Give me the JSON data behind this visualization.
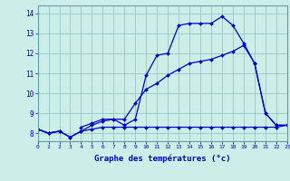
{
  "xlabel": "Graphe des températures (°c)",
  "hours": [
    0,
    1,
    2,
    3,
    4,
    5,
    6,
    7,
    8,
    9,
    10,
    11,
    12,
    13,
    14,
    15,
    16,
    17,
    18,
    19,
    20,
    21,
    22,
    23
  ],
  "line1": [
    8.2,
    8.0,
    8.1,
    null,
    8.3,
    8.5,
    8.7,
    8.7,
    8.4,
    8.7,
    10.9,
    11.9,
    12.0,
    13.4,
    13.5,
    13.5,
    13.5,
    13.85,
    13.4,
    12.5,
    11.5,
    9.0,
    8.4,
    8.4
  ],
  "line2": [
    8.2,
    8.0,
    8.1,
    7.8,
    8.1,
    8.4,
    8.6,
    8.7,
    8.7,
    9.5,
    10.2,
    10.5,
    10.9,
    11.2,
    11.5,
    11.6,
    11.7,
    11.9,
    12.1,
    12.4,
    11.5,
    9.0,
    8.4,
    8.4
  ],
  "line3": [
    8.2,
    8.0,
    8.1,
    7.8,
    8.1,
    8.2,
    8.3,
    8.3,
    8.3,
    8.3,
    8.3,
    8.3,
    8.3,
    8.3,
    8.3,
    8.3,
    8.3,
    8.3,
    8.3,
    8.3,
    8.3,
    8.3,
    8.3,
    8.4
  ],
  "line_color": "#0000cc",
  "bg_color": "#cceee8",
  "grid_color": "#99cccc",
  "ylim": [
    7.6,
    14.4
  ],
  "xlim": [
    0,
    23
  ],
  "yticks": [
    8,
    9,
    10,
    11,
    12,
    13,
    14
  ],
  "xticks": [
    0,
    1,
    2,
    3,
    4,
    5,
    6,
    7,
    8,
    9,
    10,
    11,
    12,
    13,
    14,
    15,
    16,
    17,
    18,
    19,
    20,
    21,
    22,
    23
  ]
}
